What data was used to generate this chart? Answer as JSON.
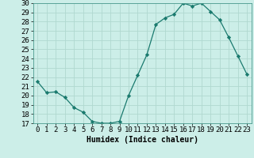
{
  "x": [
    0,
    1,
    2,
    3,
    4,
    5,
    6,
    7,
    8,
    9,
    10,
    11,
    12,
    13,
    14,
    15,
    16,
    17,
    18,
    19,
    20,
    21,
    22,
    23
  ],
  "y": [
    21.5,
    20.3,
    20.4,
    19.8,
    18.7,
    18.2,
    17.2,
    17.0,
    17.0,
    17.2,
    20.0,
    22.2,
    24.4,
    27.7,
    28.4,
    28.8,
    30.0,
    29.7,
    30.0,
    29.1,
    28.2,
    26.3,
    24.3,
    22.3
  ],
  "line_color": "#1a7a6e",
  "marker": "D",
  "marker_size": 2.2,
  "bg_color": "#cceee8",
  "grid_color": "#b0d8d0",
  "xlabel": "Humidex (Indice chaleur)",
  "ylim": [
    17,
    30
  ],
  "xlim": [
    -0.5,
    23.5
  ],
  "yticks": [
    17,
    18,
    19,
    20,
    21,
    22,
    23,
    24,
    25,
    26,
    27,
    28,
    29,
    30
  ],
  "xticks": [
    0,
    1,
    2,
    3,
    4,
    5,
    6,
    7,
    8,
    9,
    10,
    11,
    12,
    13,
    14,
    15,
    16,
    17,
    18,
    19,
    20,
    21,
    22,
    23
  ],
  "xlabel_fontsize": 7,
  "tick_fontsize": 6.5
}
